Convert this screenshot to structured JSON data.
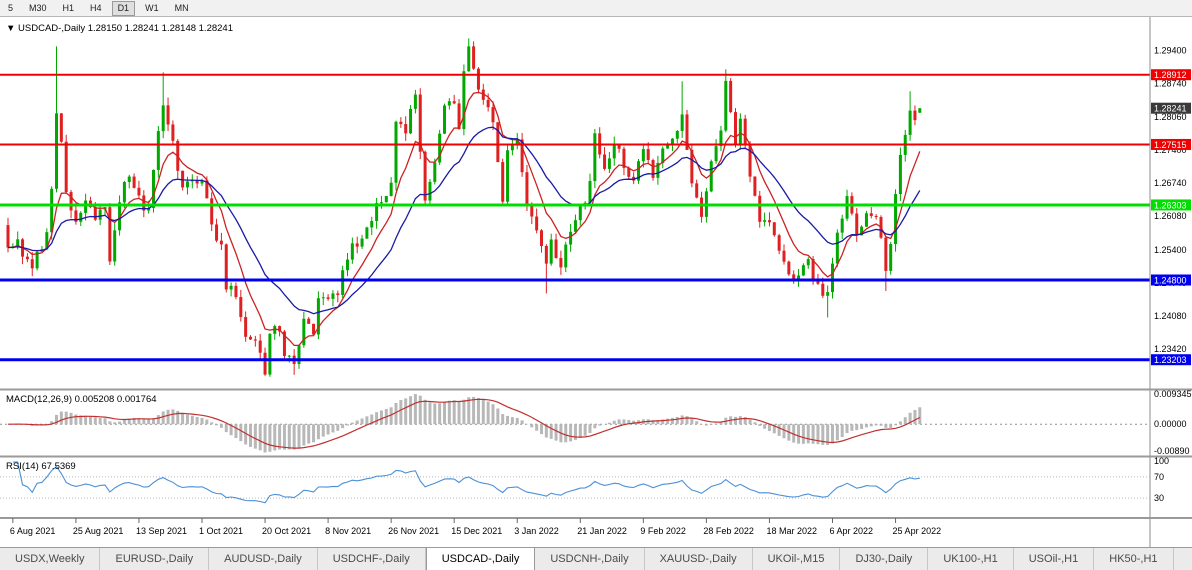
{
  "toolbar": {
    "periods": [
      {
        "label": "5",
        "active": false
      },
      {
        "label": "M30",
        "active": false
      },
      {
        "label": "H1",
        "active": false
      },
      {
        "label": "H4",
        "active": false
      },
      {
        "label": "D1",
        "active": true
      },
      {
        "label": "W1",
        "active": false
      },
      {
        "label": "MN",
        "active": false
      }
    ]
  },
  "header": {
    "arrow": "▼",
    "symbol": "USDCAD-,Daily",
    "open": "1.28150",
    "high": "1.28241",
    "low": "1.28148",
    "close": "1.28241"
  },
  "chart_data": {
    "type": "candlestick",
    "symbol": "USDCAD-",
    "timeframe": "Daily",
    "bars": 189,
    "last_ohlc": [
      1.2815,
      1.28241,
      1.28148,
      1.28241
    ],
    "current_price": 1.28241,
    "price_axis": {
      "ticks": [
        1.294,
        1.2874,
        1.2806,
        1.274,
        1.2674,
        1.2608,
        1.254,
        1.2474,
        1.2408,
        1.2342
      ],
      "visible_range": [
        1.2268,
        1.3001
      ]
    },
    "time_axis": [
      "6 Aug 2021",
      "25 Aug 2021",
      "13 Sep 2021",
      "1 Oct 2021",
      "20 Oct 2021",
      "8 Nov 2021",
      "26 Nov 2021",
      "15 Dec 2021",
      "3 Jan 2022",
      "21 Jan 2022",
      "9 Feb 2022",
      "28 Feb 2022",
      "18 Mar 2022",
      "6 Apr 2022",
      "25 Apr 2022"
    ],
    "hlines": [
      {
        "price": 1.28912,
        "color": "#f00000",
        "width": 2
      },
      {
        "price": 1.27515,
        "color": "#f00000",
        "width": 2
      },
      {
        "price": 1.26303,
        "color": "#00dd00",
        "width": 3
      },
      {
        "price": 1.248,
        "color": "#0000f0",
        "width": 3
      },
      {
        "price": 1.23203,
        "color": "#0000f0",
        "width": 3
      }
    ],
    "up_color": "#00a800",
    "down_color": "#e02020",
    "ma_lines": [
      {
        "period": 8,
        "color": "#cc2222"
      },
      {
        "period": 21,
        "color": "#1a1aa6"
      }
    ],
    "close_anchors": [
      [
        0,
        1.2545
      ],
      [
        2,
        1.2562
      ],
      [
        3,
        1.2518
      ],
      [
        5,
        1.2506
      ],
      [
        7,
        1.2545
      ],
      [
        8,
        1.2582
      ],
      [
        9,
        1.2655
      ],
      [
        10,
        1.2825
      ],
      [
        11,
        1.2758
      ],
      [
        12,
        1.2648
      ],
      [
        14,
        1.2598
      ],
      [
        16,
        1.2634
      ],
      [
        18,
        1.2612
      ],
      [
        20,
        1.2628
      ],
      [
        21,
        1.2528
      ],
      [
        23,
        1.2642
      ],
      [
        25,
        1.2692
      ],
      [
        27,
        1.2638
      ],
      [
        29,
        1.2622
      ],
      [
        31,
        1.2768
      ],
      [
        32,
        1.2818
      ],
      [
        34,
        1.2762
      ],
      [
        36,
        1.2656
      ],
      [
        38,
        1.2686
      ],
      [
        40,
        1.2678
      ],
      [
        42,
        1.2586
      ],
      [
        44,
        1.2548
      ],
      [
        45,
        1.2472
      ],
      [
        47,
        1.2442
      ],
      [
        49,
        1.2368
      ],
      [
        51,
        1.2356
      ],
      [
        53,
        1.2292
      ],
      [
        54,
        1.2368
      ],
      [
        56,
        1.2388
      ],
      [
        57,
        1.2336
      ],
      [
        59,
        1.2308
      ],
      [
        61,
        1.2392
      ],
      [
        63,
        1.2382
      ],
      [
        64,
        1.2436
      ],
      [
        66,
        1.2448
      ],
      [
        68,
        1.2442
      ],
      [
        69,
        1.2498
      ],
      [
        71,
        1.2548
      ],
      [
        73,
        1.2552
      ],
      [
        75,
        1.2608
      ],
      [
        77,
        1.2642
      ],
      [
        79,
        1.2672
      ],
      [
        80,
        1.2792
      ],
      [
        82,
        1.2772
      ],
      [
        83,
        1.2822
      ],
      [
        84,
        1.2842
      ],
      [
        86,
        1.2648
      ],
      [
        88,
        1.2708
      ],
      [
        90,
        1.2818
      ],
      [
        92,
        1.2838
      ],
      [
        93,
        1.2772
      ],
      [
        94,
        1.2888
      ],
      [
        95,
        1.2942
      ],
      [
        96,
        1.2898
      ],
      [
        98,
        1.2838
      ],
      [
        100,
        1.2802
      ],
      [
        102,
        1.2638
      ],
      [
        103,
        1.2742
      ],
      [
        105,
        1.2768
      ],
      [
        107,
        1.2642
      ],
      [
        109,
        1.2572
      ],
      [
        111,
        1.2508
      ],
      [
        112,
        1.2552
      ],
      [
        114,
        1.2512
      ],
      [
        116,
        1.2578
      ],
      [
        118,
        1.2622
      ],
      [
        120,
        1.2668
      ],
      [
        121,
        1.2772
      ],
      [
        123,
        1.2692
      ],
      [
        125,
        1.2762
      ],
      [
        127,
        1.2702
      ],
      [
        129,
        1.2682
      ],
      [
        131,
        1.2742
      ],
      [
        133,
        1.2692
      ],
      [
        135,
        1.2752
      ],
      [
        137,
        1.2758
      ],
      [
        139,
        1.2808
      ],
      [
        141,
        1.2672
      ],
      [
        143,
        1.2618
      ],
      [
        144,
        1.2662
      ],
      [
        145,
        1.2722
      ],
      [
        147,
        1.2768
      ],
      [
        148,
        1.2878
      ],
      [
        150,
        1.2742
      ],
      [
        151,
        1.2802
      ],
      [
        153,
        1.2682
      ],
      [
        155,
        1.2602
      ],
      [
        157,
        1.2592
      ],
      [
        159,
        1.2548
      ],
      [
        161,
        1.2482
      ],
      [
        163,
        1.2478
      ],
      [
        165,
        1.2522
      ],
      [
        166,
        1.2488
      ],
      [
        167,
        1.2462
      ],
      [
        169,
        1.2448
      ],
      [
        171,
        1.2582
      ],
      [
        173,
        1.2642
      ],
      [
        175,
        1.2568
      ],
      [
        177,
        1.2612
      ],
      [
        179,
        1.2602
      ],
      [
        180,
        1.2558
      ],
      [
        181,
        1.2498
      ],
      [
        182,
        1.2562
      ],
      [
        183,
        1.2642
      ],
      [
        184,
        1.2722
      ],
      [
        185,
        1.2782
      ],
      [
        186,
        1.2822
      ],
      [
        187,
        1.2812
      ],
      [
        188,
        1.28241
      ]
    ],
    "wick_highs": [
      [
        10,
        1.2948
      ],
      [
        32,
        1.2896
      ],
      [
        95,
        1.2964
      ],
      [
        139,
        1.2878
      ],
      [
        148,
        1.2902
      ],
      [
        186,
        1.2858
      ]
    ],
    "wick_lows": [
      [
        53,
        1.2288
      ],
      [
        59,
        1.229
      ],
      [
        111,
        1.2453
      ],
      [
        169,
        1.2405
      ],
      [
        181,
        1.2458
      ]
    ],
    "macd": {
      "label": "MACD(12,26,9)",
      "main": "0.005208",
      "signal": "0.001764",
      "axis_labels": [
        "0.009345",
        "0.00000",
        "-0.00890"
      ],
      "axis_values": [
        0.009345,
        0,
        -0.0089
      ],
      "hist_color": "#b8b8b8",
      "signal_color": "#c03030"
    },
    "rsi": {
      "label": "RSI(14)",
      "value": "67.5369",
      "levels": [
        100,
        70,
        30
      ],
      "line_color": "#4a90d9"
    }
  },
  "tabs": {
    "items": [
      {
        "label": "USDX,Weekly",
        "active": false
      },
      {
        "label": "EURUSD-,Daily",
        "active": false
      },
      {
        "label": "AUDUSD-,Daily",
        "active": false
      },
      {
        "label": "USDCHF-,Daily",
        "active": false
      },
      {
        "label": "USDCAD-,Daily",
        "active": true
      },
      {
        "label": "USDCNH-,Daily",
        "active": false
      },
      {
        "label": "XAUUSD-,Daily",
        "active": false
      },
      {
        "label": "UKOil-,M15",
        "active": false
      },
      {
        "label": "DJ30-,Daily",
        "active": false
      },
      {
        "label": "UK100-,H1",
        "active": false
      },
      {
        "label": "USOil-,H1",
        "active": false
      },
      {
        "label": "HK50-,H1",
        "active": false
      }
    ]
  }
}
